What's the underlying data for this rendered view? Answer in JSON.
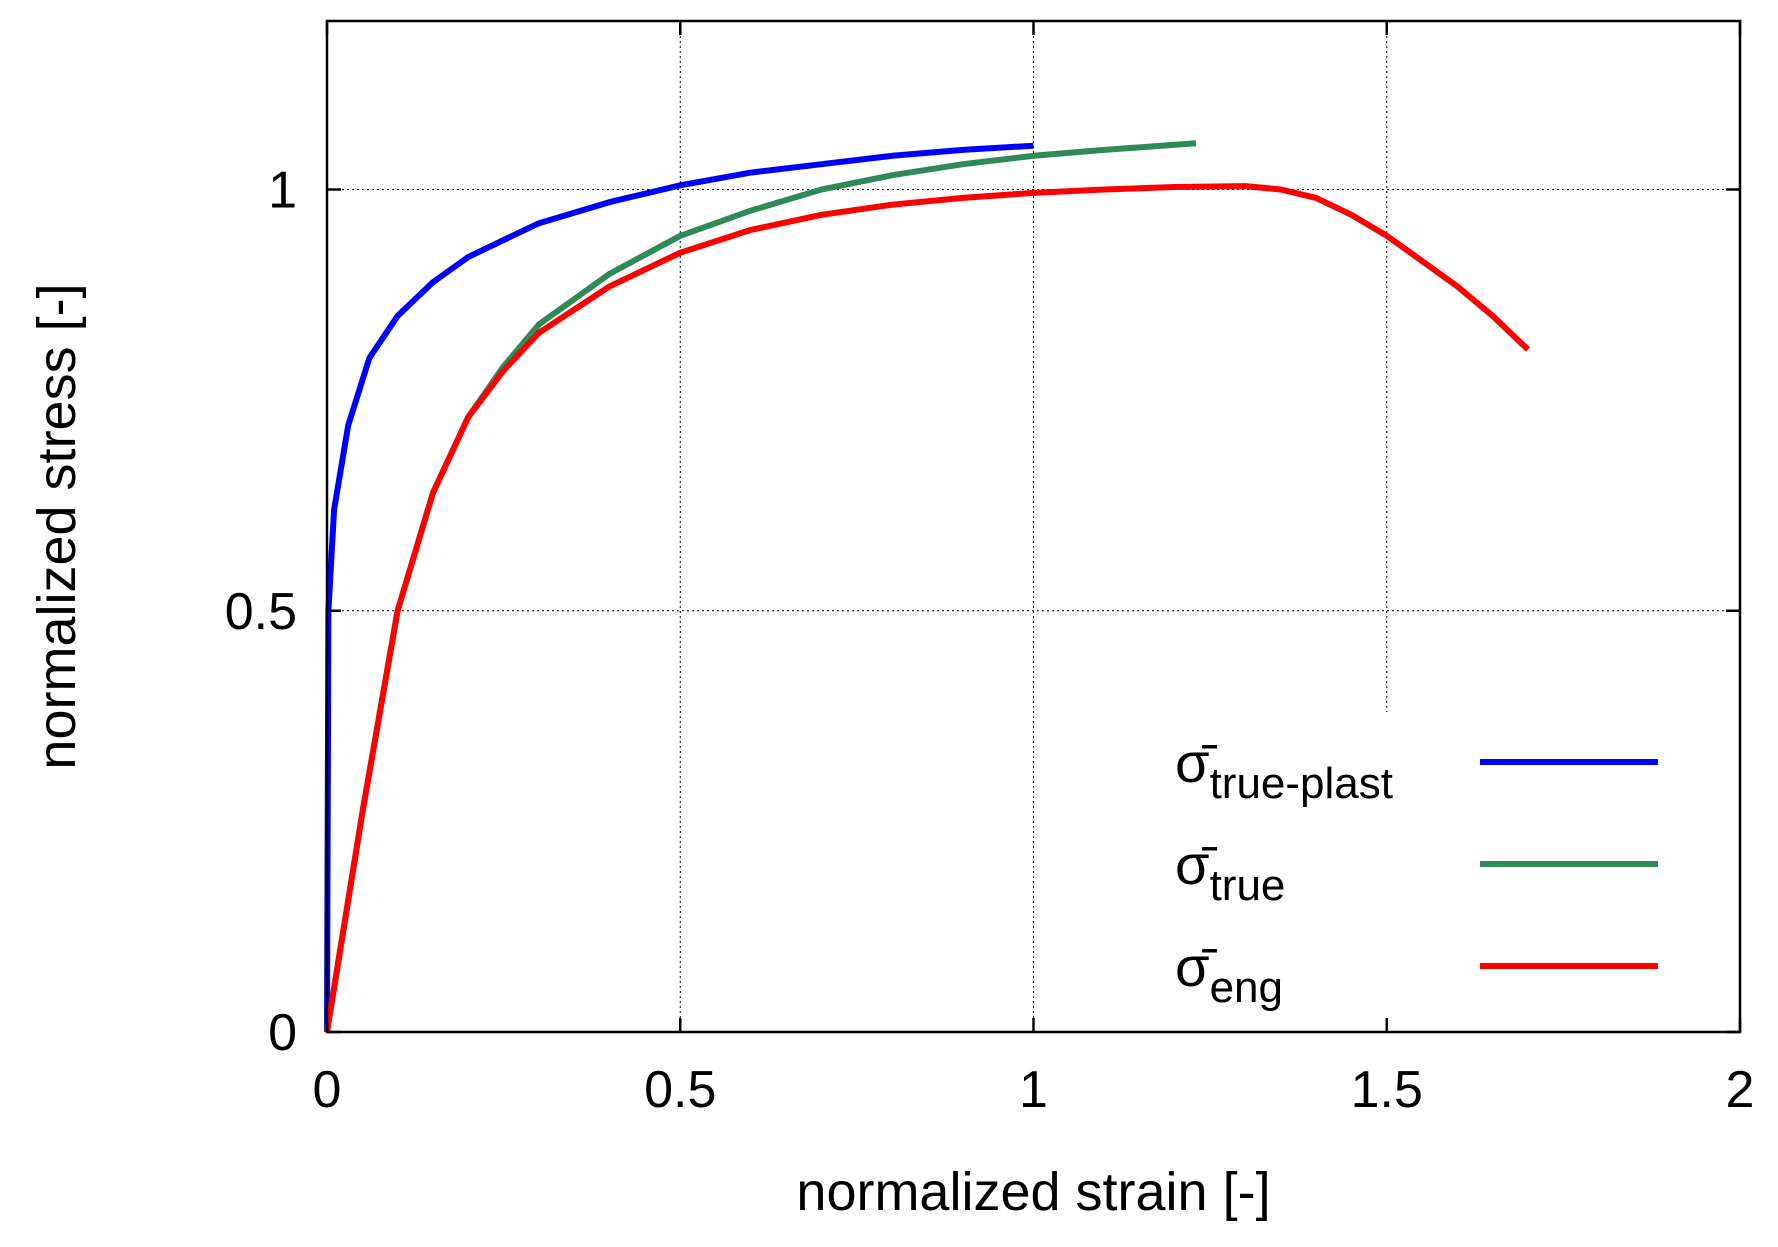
{
  "chart_data": {
    "type": "line",
    "xlabel": "normalized strain [-]",
    "ylabel": "normalized stress [-]",
    "xlim": [
      0,
      2
    ],
    "ylim": [
      0,
      1.2
    ],
    "x_ticks": [
      0,
      0.5,
      1,
      1.5,
      2
    ],
    "x_tick_labels": [
      "0",
      "0.5",
      "1",
      "1.5",
      "2"
    ],
    "y_ticks": [
      0,
      0.5,
      1
    ],
    "y_tick_labels": [
      "0",
      "0.5",
      "1"
    ],
    "grid": true,
    "legend_position": "bottom-right",
    "series": [
      {
        "name": "σ̄ true-plast",
        "symbol": "σ̄",
        "subscript": "true-plast",
        "color": "#0000ff",
        "points": [
          [
            0,
            0
          ],
          [
            0.002,
            0.5
          ],
          [
            0.01,
            0.62
          ],
          [
            0.03,
            0.72
          ],
          [
            0.06,
            0.8
          ],
          [
            0.1,
            0.85
          ],
          [
            0.15,
            0.89
          ],
          [
            0.2,
            0.92
          ],
          [
            0.3,
            0.96
          ],
          [
            0.4,
            0.985
          ],
          [
            0.5,
            1.005
          ],
          [
            0.6,
            1.02
          ],
          [
            0.7,
            1.03
          ],
          [
            0.8,
            1.04
          ],
          [
            0.9,
            1.047
          ],
          [
            1.0,
            1.052
          ]
        ]
      },
      {
        "name": "σ̄ true",
        "symbol": "σ̄",
        "subscript": "true",
        "color": "#2e8b57",
        "points": [
          [
            0,
            0
          ],
          [
            0.05,
            0.26
          ],
          [
            0.1,
            0.5
          ],
          [
            0.15,
            0.64
          ],
          [
            0.2,
            0.73
          ],
          [
            0.25,
            0.79
          ],
          [
            0.3,
            0.84
          ],
          [
            0.4,
            0.9
          ],
          [
            0.5,
            0.945
          ],
          [
            0.6,
            0.975
          ],
          [
            0.7,
            1.0
          ],
          [
            0.8,
            1.017
          ],
          [
            0.9,
            1.03
          ],
          [
            1.0,
            1.04
          ],
          [
            1.1,
            1.047
          ],
          [
            1.2,
            1.053
          ],
          [
            1.23,
            1.055
          ]
        ]
      },
      {
        "name": "σ̄ eng",
        "symbol": "σ̄",
        "subscript": "eng",
        "color": "#ff0000",
        "points": [
          [
            0,
            0
          ],
          [
            0.05,
            0.26
          ],
          [
            0.1,
            0.5
          ],
          [
            0.15,
            0.64
          ],
          [
            0.2,
            0.73
          ],
          [
            0.25,
            0.785
          ],
          [
            0.3,
            0.83
          ],
          [
            0.4,
            0.885
          ],
          [
            0.5,
            0.925
          ],
          [
            0.6,
            0.952
          ],
          [
            0.7,
            0.97
          ],
          [
            0.8,
            0.982
          ],
          [
            0.9,
            0.99
          ],
          [
            1.0,
            0.996
          ],
          [
            1.1,
            1.0
          ],
          [
            1.2,
            1.003
          ],
          [
            1.3,
            1.004
          ],
          [
            1.35,
            1.0
          ],
          [
            1.4,
            0.99
          ],
          [
            1.45,
            0.97
          ],
          [
            1.5,
            0.945
          ],
          [
            1.55,
            0.915
          ],
          [
            1.6,
            0.885
          ],
          [
            1.65,
            0.85
          ],
          [
            1.7,
            0.81
          ]
        ]
      }
    ]
  }
}
